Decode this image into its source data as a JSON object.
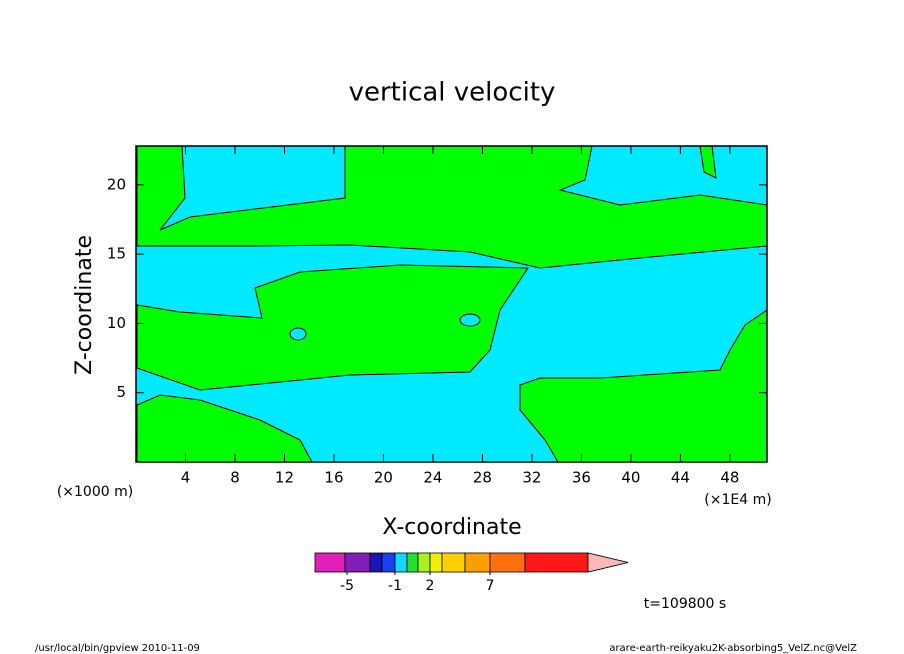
{
  "chart_data": {
    "type": "contour",
    "title": "vertical velocity",
    "x_label": "X-coordinate",
    "y_label": "Z-coordinate",
    "x_unit": "(×1E4 m)",
    "y_unit": "(×1000 m)",
    "xlim": [
      0,
      51
    ],
    "ylim": [
      0,
      22.8
    ],
    "xticks": [
      4,
      8,
      12,
      16,
      20,
      24,
      28,
      32,
      36,
      40,
      44,
      48
    ],
    "yticks": [
      5,
      10,
      15,
      20
    ],
    "colorbar_colors": [
      "#e020b8",
      "#8020b8",
      "#1818b0",
      "#1840f0",
      "#10d8ff",
      "#20e030",
      "#a8f020",
      "#f0f000",
      "#ffd000",
      "#ffa000",
      "#ff7010",
      "#ff1818",
      "#ff8080",
      "#ffb8b8"
    ],
    "colorbar_ticks": [
      -5,
      -1,
      2,
      7
    ],
    "time_label": "t=109800 s",
    "footer_left": "/usr/local/bin/gpview  2010-11-09",
    "footer_right": "arare-earth-reikyaku2K-absorbing5_VelZ.nc@VelZ"
  }
}
